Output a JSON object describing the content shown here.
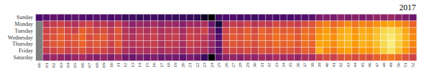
{
  "chart_data": {
    "type": "heatmap",
    "title": "2017",
    "x": [
      "00",
      "01",
      "02",
      "03",
      "04",
      "05",
      "06",
      "07",
      "08",
      "09",
      "10",
      "11",
      "12",
      "13",
      "14",
      "15",
      "16",
      "17",
      "18",
      "19",
      "20",
      "21",
      "22",
      "23",
      "24",
      "25",
      "26",
      "27",
      "28",
      "29",
      "30",
      "31",
      "32",
      "33",
      "34",
      "35",
      "36",
      "37",
      "38",
      "39",
      "40",
      "41",
      "42",
      "43",
      "44",
      "45",
      "46",
      "47",
      "48",
      "49",
      "50",
      "51",
      "52"
    ],
    "y": [
      "Sunday",
      "Monday",
      "Tuesday",
      "Wednesday",
      "Thursday",
      "Friday",
      "Saturday"
    ],
    "zlim": [
      0,
      100
    ],
    "cells": [
      [
        22,
        25,
        28,
        26,
        24,
        27,
        25,
        23,
        26,
        24,
        22,
        25,
        18,
        20,
        17,
        19,
        21,
        18,
        20,
        17,
        19,
        18,
        16,
        6,
        0,
        20,
        22,
        24,
        21,
        23,
        20,
        22,
        24,
        21,
        23,
        22,
        25,
        24,
        26,
        34,
        36,
        33,
        38,
        35,
        37,
        34,
        36,
        40,
        38,
        42,
        37,
        35,
        30
      ],
      [
        null,
        48,
        52,
        55,
        50,
        47,
        53,
        56,
        49,
        51,
        46,
        54,
        44,
        38,
        42,
        40,
        45,
        39,
        43,
        41,
        37,
        44,
        42,
        46,
        30,
        10,
        48,
        52,
        50,
        55,
        49,
        53,
        51,
        57,
        54,
        56,
        52,
        58,
        60,
        68,
        72,
        66,
        70,
        74,
        69,
        73,
        71,
        75,
        78,
        80,
        76,
        72,
        65
      ],
      [
        null,
        55,
        58,
        62,
        57,
        54,
        64,
        60,
        56,
        59,
        52,
        61,
        48,
        45,
        50,
        47,
        52,
        46,
        49,
        51,
        44,
        53,
        50,
        55,
        40,
        20,
        56,
        60,
        58,
        63,
        57,
        65,
        61,
        66,
        62,
        64,
        60,
        67,
        65,
        75,
        78,
        72,
        80,
        82,
        76,
        81,
        79,
        84,
        90,
        92,
        88,
        80,
        72
      ],
      [
        null,
        57,
        60,
        64,
        59,
        62,
        66,
        58,
        61,
        63,
        55,
        60,
        50,
        47,
        52,
        49,
        54,
        48,
        51,
        53,
        46,
        55,
        52,
        50,
        42,
        25,
        58,
        62,
        60,
        64,
        59,
        66,
        63,
        68,
        65,
        67,
        62,
        69,
        66,
        77,
        80,
        75,
        82,
        84,
        78,
        83,
        81,
        86,
        92,
        95,
        90,
        82,
        74
      ],
      [
        null,
        56,
        61,
        63,
        58,
        60,
        65,
        59,
        62,
        60,
        54,
        62,
        49,
        48,
        51,
        50,
        53,
        47,
        52,
        50,
        45,
        54,
        51,
        49,
        41,
        28,
        57,
        61,
        59,
        62,
        58,
        64,
        62,
        67,
        64,
        66,
        61,
        68,
        65,
        80,
        79,
        74,
        81,
        83,
        77,
        82,
        80,
        85,
        91,
        96,
        89,
        81,
        73
      ],
      [
        null,
        52,
        56,
        59,
        54,
        57,
        60,
        55,
        58,
        56,
        50,
        57,
        46,
        44,
        48,
        46,
        50,
        44,
        48,
        47,
        42,
        50,
        47,
        46,
        38,
        26,
        53,
        57,
        55,
        58,
        54,
        60,
        58,
        62,
        60,
        61,
        57,
        64,
        62,
        82,
        74,
        70,
        77,
        79,
        73,
        78,
        76,
        81,
        88,
        93,
        86,
        77,
        69
      ],
      [
        null,
        38,
        42,
        40,
        37,
        41,
        44,
        39,
        36,
        40,
        35,
        42,
        32,
        30,
        34,
        31,
        35,
        30,
        33,
        32,
        28,
        34,
        30,
        18,
        0,
        26,
        38,
        40,
        37,
        42,
        39,
        44,
        41,
        45,
        43,
        44,
        40,
        46,
        45,
        55,
        58,
        54,
        60,
        62,
        57,
        61,
        59,
        64,
        68,
        70,
        66,
        60,
        55
      ]
    ]
  }
}
